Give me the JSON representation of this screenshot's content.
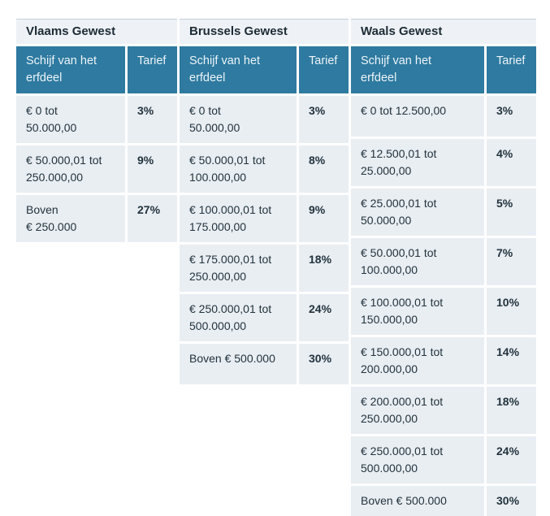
{
  "colors": {
    "header_bg": "#2e7aa0",
    "header_text": "#edf4f8",
    "row_bg": "#e9eef3",
    "title_bg": "#eef2f6",
    "title_border": "#c6d0d8",
    "title_text": "#1c2b35",
    "body_text": "#22333d"
  },
  "tables": [
    {
      "title": "Vlaams Gewest",
      "columns": {
        "bracket": "Schijf van het\nerfdeel",
        "rate": "Tarief"
      },
      "rows": [
        {
          "bracket": "€ 0 tot\n50.000,00",
          "rate": "3%"
        },
        {
          "bracket": "€ 50.000,01 tot\n250.000,00",
          "rate": "9%"
        },
        {
          "bracket": "Boven\n€ 250.000",
          "rate": "27%"
        }
      ]
    },
    {
      "title": "Brussels Gewest",
      "columns": {
        "bracket": "Schijf van het\nerfdeel",
        "rate": "Tarief"
      },
      "rows": [
        {
          "bracket": "€ 0 tot\n50.000,00",
          "rate": "3%"
        },
        {
          "bracket": "€ 50.000,01 tot\n100.000,00",
          "rate": "8%"
        },
        {
          "bracket": "€ 100.000,01 tot\n175.000,00",
          "rate": "9%"
        },
        {
          "bracket": "€ 175.000,01 tot\n250.000,00",
          "rate": "18%"
        },
        {
          "bracket": "€ 250.000,01 tot\n500.000,00",
          "rate": "24%"
        },
        {
          "bracket": "Boven € 500.000",
          "rate": "30%"
        }
      ]
    },
    {
      "title": "Waals Gewest",
      "columns": {
        "bracket": "Schijf van het\nerfdeel",
        "rate": "Tarief"
      },
      "rows": [
        {
          "bracket": "€ 0 tot 12.500,00",
          "rate": "3%"
        },
        {
          "bracket": "€ 12.500,01 tot\n25.000,00",
          "rate": "4%"
        },
        {
          "bracket": "€ 25.000,01 tot\n50.000,00",
          "rate": "5%"
        },
        {
          "bracket": "€ 50.000,01 tot\n100.000,00",
          "rate": "7%"
        },
        {
          "bracket": "€ 100.000,01 tot\n150.000,00",
          "rate": "10%"
        },
        {
          "bracket": "€ 150.000,01 tot\n200.000,00",
          "rate": "14%"
        },
        {
          "bracket": "€ 200.000,01 tot\n250.000,00",
          "rate": "18%"
        },
        {
          "bracket": "€ 250.000,01 tot\n500.000,00",
          "rate": "24%"
        },
        {
          "bracket": "Boven € 500.000",
          "rate": "30%"
        }
      ]
    }
  ]
}
